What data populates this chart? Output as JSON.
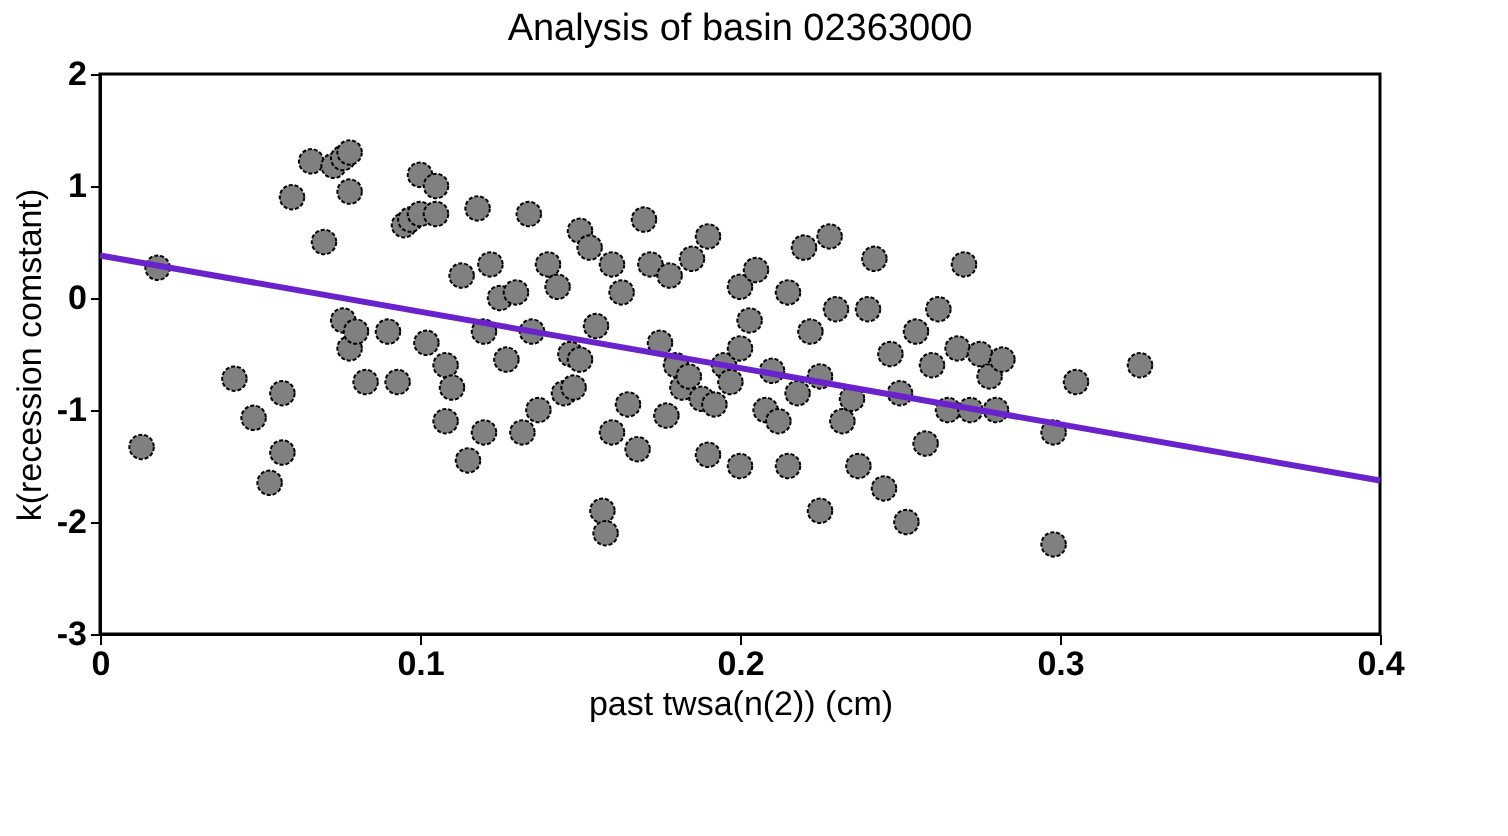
{
  "chart_data": {
    "type": "scatter",
    "title": "Analysis of basin 02363000",
    "xlabel": "past twsa(n(2)) (cm)",
    "ylabel": "k(recession comstant)",
    "xlim": [
      0,
      0.4
    ],
    "ylim": [
      -3,
      2
    ],
    "xticks": [
      0,
      0.1,
      0.2,
      0.3,
      0.4
    ],
    "yticks": [
      -3,
      -2,
      -1,
      0,
      1,
      2
    ],
    "grid": false,
    "marker": "circle",
    "series": [
      {
        "color": "#808080",
        "x": [
          0.013,
          0.018,
          0.042,
          0.048,
          0.053,
          0.057,
          0.057,
          0.06,
          0.066,
          0.07,
          0.073,
          0.076,
          0.078,
          0.078,
          0.078,
          0.076,
          0.08,
          0.083,
          0.09,
          0.093,
          0.095,
          0.097,
          0.1,
          0.1,
          0.102,
          0.105,
          0.105,
          0.108,
          0.11,
          0.108,
          0.115,
          0.113,
          0.118,
          0.12,
          0.12,
          0.122,
          0.125,
          0.127,
          0.13,
          0.132,
          0.134,
          0.135,
          0.137,
          0.14,
          0.143,
          0.145,
          0.147,
          0.148,
          0.15,
          0.15,
          0.153,
          0.155,
          0.157,
          0.158,
          0.16,
          0.16,
          0.163,
          0.165,
          0.168,
          0.17,
          0.172,
          0.175,
          0.177,
          0.178,
          0.18,
          0.182,
          0.184,
          0.185,
          0.188,
          0.19,
          0.19,
          0.192,
          0.195,
          0.197,
          0.2,
          0.2,
          0.2,
          0.203,
          0.205,
          0.208,
          0.21,
          0.212,
          0.215,
          0.215,
          0.218,
          0.22,
          0.222,
          0.225,
          0.225,
          0.228,
          0.23,
          0.232,
          0.235,
          0.237,
          0.24,
          0.242,
          0.245,
          0.247,
          0.25,
          0.252,
          0.255,
          0.258,
          0.26,
          0.262,
          0.265,
          0.268,
          0.27,
          0.272,
          0.275,
          0.278,
          0.28,
          0.282,
          0.298,
          0.298,
          0.305,
          0.325
        ],
        "values": [
          -1.33,
          0.27,
          -0.72,
          -1.07,
          -1.65,
          -0.85,
          -1.38,
          0.9,
          1.22,
          0.5,
          1.18,
          1.25,
          1.3,
          0.95,
          -0.45,
          -0.2,
          -0.3,
          -0.75,
          -0.3,
          -0.75,
          0.65,
          0.7,
          1.1,
          0.75,
          -0.4,
          1.0,
          0.75,
          -0.6,
          -0.8,
          -1.1,
          -1.45,
          0.2,
          0.8,
          -1.2,
          -0.3,
          0.3,
          0.0,
          -0.55,
          0.05,
          -1.2,
          0.75,
          -0.3,
          -1.0,
          0.3,
          0.1,
          -0.85,
          -0.5,
          -0.8,
          -0.55,
          0.6,
          0.45,
          -0.25,
          -1.9,
          -2.1,
          -1.2,
          0.3,
          0.05,
          -0.95,
          -1.35,
          0.7,
          0.3,
          -0.4,
          -1.05,
          0.2,
          -0.6,
          -0.8,
          -0.7,
          0.35,
          -0.9,
          -1.4,
          0.55,
          -0.95,
          -0.6,
          -0.75,
          0.1,
          -0.45,
          -1.5,
          -0.2,
          0.25,
          -1.0,
          -0.65,
          -1.1,
          0.05,
          -1.5,
          -0.85,
          0.45,
          -0.3,
          -0.7,
          -1.9,
          0.55,
          -0.1,
          -1.1,
          -0.9,
          -1.5,
          -0.1,
          0.35,
          -1.7,
          -0.5,
          -0.85,
          -2.0,
          -0.3,
          -1.3,
          -0.6,
          -0.1,
          -1.0,
          -0.45,
          0.3,
          -1.0,
          -0.5,
          -0.7,
          -1.0,
          -0.55,
          -1.2,
          -2.2,
          -0.75,
          -0.6
        ]
      },
      {
        "type": "line",
        "color": "#6a22cc",
        "x": [
          0,
          0.4
        ],
        "values": [
          0.38,
          -1.63
        ],
        "marker": "none",
        "line_style": "solid"
      }
    ]
  }
}
